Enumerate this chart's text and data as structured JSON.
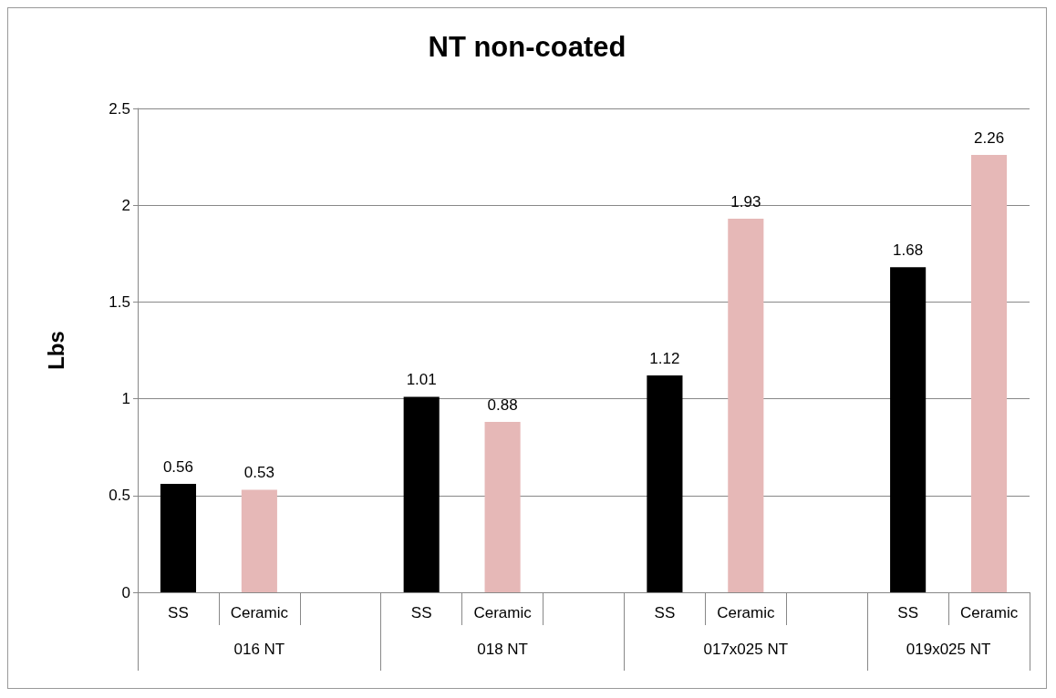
{
  "chart_data": {
    "type": "bar",
    "title": "NT non-coated",
    "ylabel": "Lbs",
    "categories": [
      "SS",
      "Ceramic",
      null,
      "SS",
      "Ceramic",
      null,
      "SS",
      "Ceramic",
      null,
      "SS",
      "Ceramic"
    ],
    "values": [
      0.56,
      0.53,
      null,
      1.01,
      0.88,
      null,
      1.12,
      1.93,
      null,
      1.68,
      2.26
    ],
    "colors": [
      "#000000",
      "#e6b8b7",
      null,
      "#000000",
      "#e6b8b7",
      null,
      "#000000",
      "#e6b8b7",
      null,
      "#000000",
      "#e6b8b7"
    ],
    "annotations": [
      "016 NT",
      "018 NT",
      "017x025 NT",
      "019x025 NT"
    ],
    "ylim": [
      0,
      2.5
    ],
    "yticks": [
      0,
      0.5,
      1,
      1.5,
      2,
      2.5
    ],
    "grid": "y",
    "data_labels": true
  }
}
